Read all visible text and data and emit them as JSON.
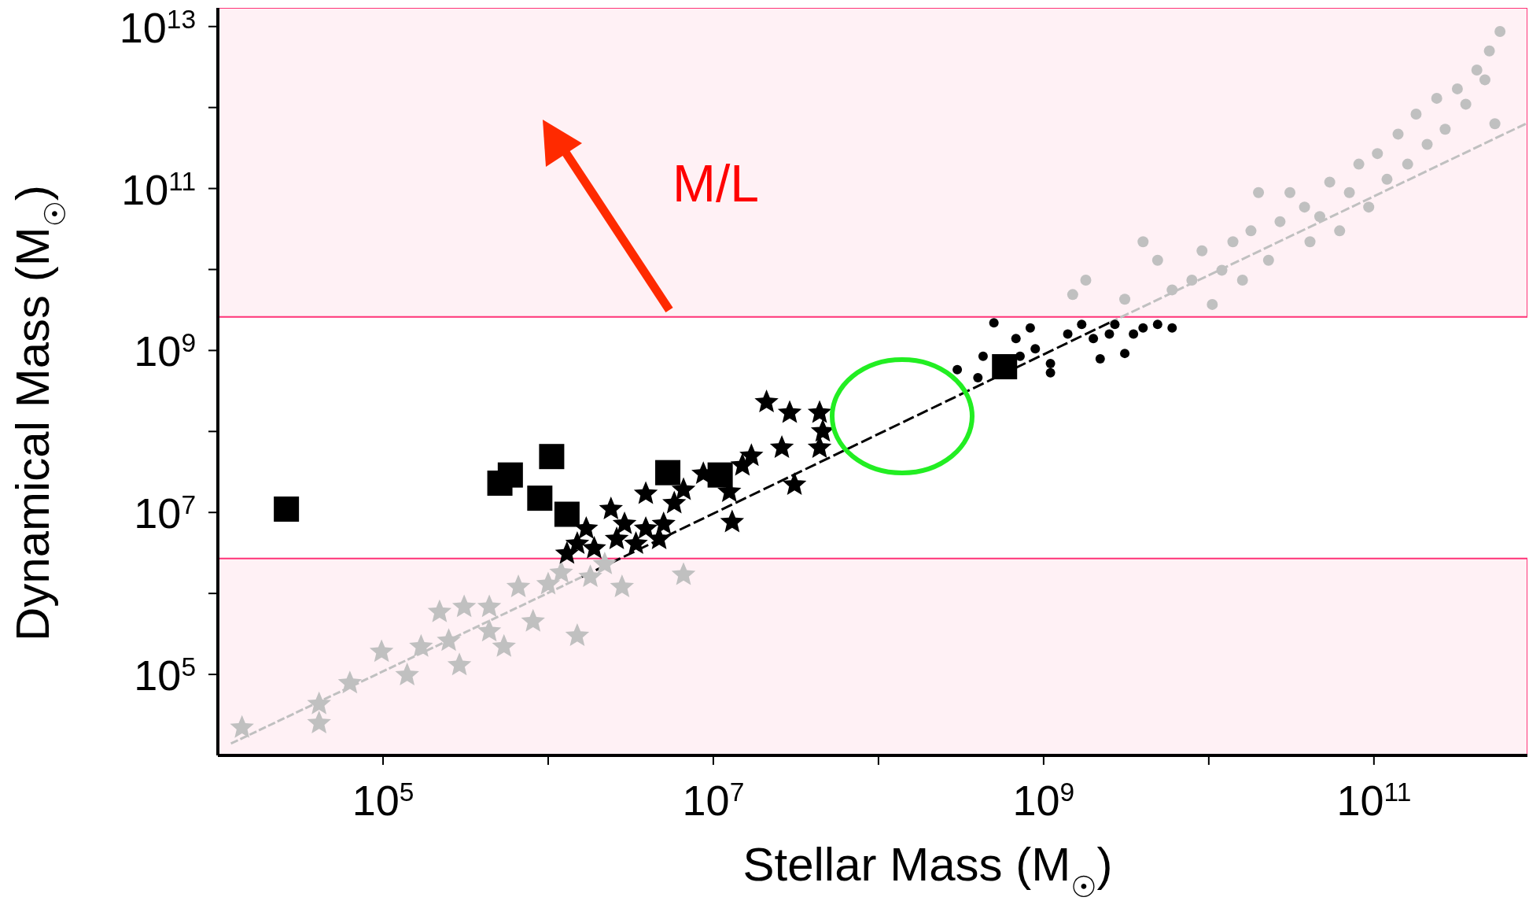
{
  "chart_data": {
    "type": "scatter",
    "xlabel": "Stellar Mass (M$_{☉}$)",
    "ylabel": "Dynamical Mass (M$_{☉}$)",
    "log": "xy",
    "legend": false,
    "xlim": [
      10000.0,
      850000000000.0
    ],
    "ylim": [
      10000.0,
      17000000000000.0
    ],
    "xticks": [
      {
        "value": 100000.0,
        "label": "10$^{5}$"
      },
      {
        "value": 1000000.0,
        "label": null
      },
      {
        "value": 10000000.0,
        "label": "10$^{7}$"
      },
      {
        "value": 100000000.0,
        "label": null
      },
      {
        "value": 1000000000.0,
        "label": "10$^{9}$"
      },
      {
        "value": 10000000000.0,
        "label": null
      },
      {
        "value": 100000000000.0,
        "label": "10$^{11}$"
      }
    ],
    "yticks": [
      {
        "value": 100000.0,
        "label": "10$^{5}$"
      },
      {
        "value": 1000000.0,
        "label": null
      },
      {
        "value": 10000000.0,
        "label": "10$^{7}$"
      },
      {
        "value": 100000000.0,
        "label": null
      },
      {
        "value": 1000000000.0,
        "label": "10$^{9}$"
      },
      {
        "value": 10000000000.0,
        "label": null
      },
      {
        "value": 100000000000.0,
        "label": "10$^{11}$"
      },
      {
        "value": 1000000000000.0,
        "label": null
      },
      {
        "value": 10000000000000.0,
        "label": "10$^{13}$"
      }
    ],
    "bands": [
      {
        "axis": "y",
        "from": 2600000000.0,
        "to": 17000000000000.0,
        "color": "#ff3377"
      },
      {
        "axis": "y",
        "from": 10000.0,
        "to": 2700000.0,
        "color": "#ff3377"
      }
    ],
    "annotations": [
      "M/L"
    ],
    "series": [
      {
        "type": "line",
        "color": "#c0c0c0",
        "line_style": "dashed",
        "marker": "none",
        "x": [
          12000.0,
          1600000.0
        ],
        "values": [
          14000.0,
          1600000.0
        ]
      },
      {
        "type": "line",
        "color": "#000000",
        "line_style": "dashed",
        "marker": "none",
        "x": [
          1600000.0,
          2500000000.0
        ],
        "values": [
          1600000.0,
          2200000000.0
        ]
      },
      {
        "type": "line",
        "color": "#c0c0c0",
        "line_style": "dashed",
        "marker": "none",
        "x": [
          2500000000.0,
          830000000000.0
        ],
        "values": [
          2200000000.0,
          630000000000.0
        ]
      },
      {
        "color": "#c0c0c0",
        "marker": "star",
        "x": [
          14000.0,
          41000.0,
          41000.0,
          63000.0,
          98000.0,
          140000.0,
          170000.0,
          250000.0,
          310000.0,
          290000.0,
          440000.0,
          540000.0,
          660000.0,
          810000.0,
          1000000.0,
          1200000.0,
          1500000.0,
          1800000.0,
          2800000.0,
          6600000.0,
          220000.0,
          440000.0,
          2200000.0
        ],
        "values": [
          22000.0,
          25000.0,
          43000.0,
          78000.0,
          190000.0,
          98000.0,
          220000.0,
          260000.0,
          680000.0,
          130000.0,
          340000.0,
          220000.0,
          1200000.0,
          450000.0,
          1300000.0,
          1800000.0,
          300000.0,
          1600000.0,
          1200000.0,
          1700000.0,
          590000.0,
          680000.0,
          2300000.0
        ]
      },
      {
        "color": "#c0c0c0",
        "marker": "circle",
        "x": [
          1500000000.0,
          3100000000.0,
          4900000000.0,
          6000000000.0,
          7900000000.0,
          10500000000.0,
          9100000000.0,
          14000000000.0,
          16000000000.0,
          18000000000.0,
          23000000000.0,
          27000000000.0,
          31000000000.0,
          38000000000.0,
          41000000000.0,
          47000000000.0,
          54000000000.0,
          62000000000.0,
          71000000000.0,
          81000000000.0,
          93000000000.0,
          105000000000.0,
          120000000000.0,
          140000000000.0,
          160000000000.0,
          180000000000.0,
          210000000000.0,
          240000000000.0,
          270000000000.0,
          320000000000.0,
          360000000000.0,
          420000000000.0,
          470000000000.0,
          500000000000.0,
          580000000000.0,
          540000000000.0,
          1800000000.0,
          4000000000.0,
          20000000000.0,
          12000000000.0
        ],
        "values": [
          4900000000.0,
          4300000000.0,
          13000000000.0,
          5600000000.0,
          7400000000.0,
          3700000000.0,
          17000000000.0,
          22000000000.0,
          7400000000.0,
          30000000000.0,
          13000000000.0,
          39000000000.0,
          89000000000.0,
          59000000000.0,
          22000000000.0,
          45000000000.0,
          120000000000.0,
          30000000000.0,
          89000000000.0,
          200000000000.0,
          59000000000.0,
          270000000000.0,
          130000000000.0,
          470000000000.0,
          200000000000.0,
          830000000000.0,
          350000000000.0,
          1300000000000.0,
          540000000000.0,
          1700000000000.0,
          1100000000000.0,
          2900000000000.0,
          2200000000000.0,
          5000000000000.0,
          8700000000000.0,
          630000000000.0,
          7400000000.0,
          22000000000.0,
          89000000000.0,
          9800000000.0
        ]
      },
      {
        "color": "#000000",
        "marker": "star",
        "x": [
          21000000.0,
          29000000.0,
          44000000.0,
          26000000.0,
          44000000.0,
          31000000.0,
          13000000.0,
          17000000.0,
          8700000.0,
          6600000.0,
          3900000.0,
          2400000.0,
          2900000.0,
          1700000.0,
          1500000.0,
          1900000.0,
          3400000.0,
          5000000.0,
          3900000.0,
          5800000.0,
          12500000.0,
          15000000.0,
          1300000.0,
          2600000.0,
          46000000.0,
          4700000.0
        ],
        "values": [
          230000000.0,
          170000000.0,
          170000000.0,
          63000000.0,
          63000000.0,
          22000000.0,
          7600000.0,
          50000000.0,
          30000000.0,
          19000000.0,
          17000000.0,
          11000000.0,
          7200000.0,
          6300000.0,
          4100000.0,
          3600000.0,
          4100000.0,
          7200000.0,
          6300000.0,
          13000000.0,
          18000000.0,
          38000000.0,
          3100000.0,
          4700000.0,
          100000000.0,
          4700000.0
        ]
      },
      {
        "color": "#000000",
        "marker": "circle",
        "x": [
          300000000.0,
          400000000.0,
          430000000.0,
          500000000.0,
          680000000.0,
          830000000.0,
          890000000.0,
          720000000.0,
          1100000000.0,
          1100000000.0,
          1400000000.0,
          1700000000.0,
          2000000000.0,
          2200000000.0,
          2700000000.0,
          3100000000.0,
          3500000000.0,
          4000000000.0,
          4900000000.0,
          6000000000.0,
          2500000000.0
        ],
        "values": [
          580000000.0,
          460000000.0,
          850000000.0,
          2200000000.0,
          1400000000.0,
          1900000000.0,
          1050000000.0,
          850000000.0,
          530000000.0,
          690000000.0,
          1600000000.0,
          2100000000.0,
          1400000000.0,
          790000000.0,
          2100000000.0,
          920000000.0,
          1600000000.0,
          1900000000.0,
          2100000000.0,
          1900000000.0,
          1600000000.0
        ]
      },
      {
        "color": "#000000",
        "marker": "square",
        "x": [
          26000.0,
          510000.0,
          590000.0,
          1050000.0,
          890000.0,
          1300000.0,
          5300000.0,
          11000000.0
        ],
        "values": [
          11000000.0,
          23000000.0,
          29000000.0,
          49000000.0,
          15000000.0,
          9500000.0,
          31000000.0,
          29000000.0
        ]
      },
      {
        "color": "#000000",
        "marker": "square",
        "x": [
          580000000.0
        ],
        "values": [
          630000000.0
        ]
      }
    ]
  }
}
